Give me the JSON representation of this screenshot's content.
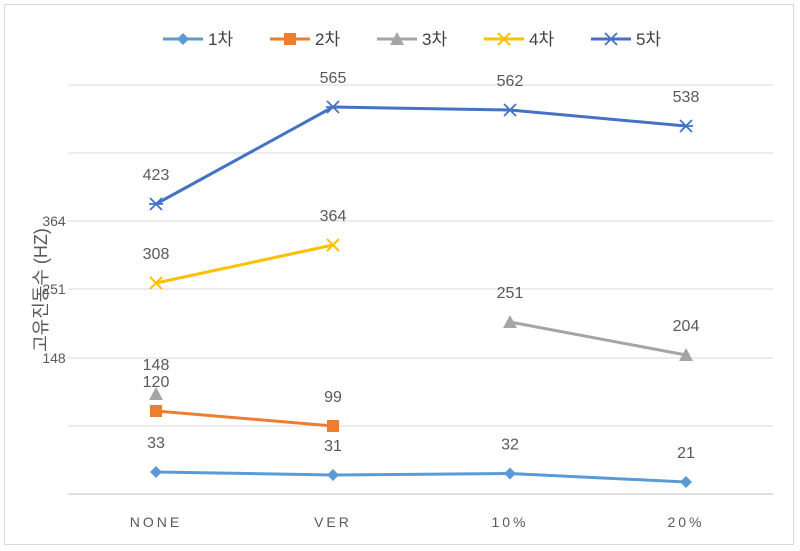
{
  "chart_data": {
    "type": "line",
    "title": "",
    "xlabel": "",
    "ylabel": "고유진동수 (HZ)",
    "categories": [
      "NONE",
      "VER",
      "10%",
      "20%"
    ],
    "y_tick_labels": [
      {
        "value": 364,
        "label": "364"
      },
      {
        "value": 251,
        "label": "251"
      },
      {
        "value": 148,
        "label": "148"
      }
    ],
    "grid": true,
    "legend": "top",
    "series": [
      {
        "name": "1차",
        "color": "#5B9BD5",
        "marker": "diamond",
        "values": [
          33,
          31,
          32,
          21
        ]
      },
      {
        "name": "2차",
        "color": "#ED7D31",
        "marker": "square",
        "values": [
          120,
          99,
          null,
          null
        ]
      },
      {
        "name": "3차",
        "color": "#A5A5A5",
        "marker": "triangle",
        "values": [
          148,
          null,
          251,
          204
        ]
      },
      {
        "name": "4차",
        "color": "#FFC000",
        "marker": "x",
        "values": [
          308,
          364,
          null,
          null
        ]
      },
      {
        "name": "5차",
        "color": "#4472C4",
        "marker": "star",
        "values": [
          423,
          565,
          562,
          538
        ]
      }
    ]
  }
}
